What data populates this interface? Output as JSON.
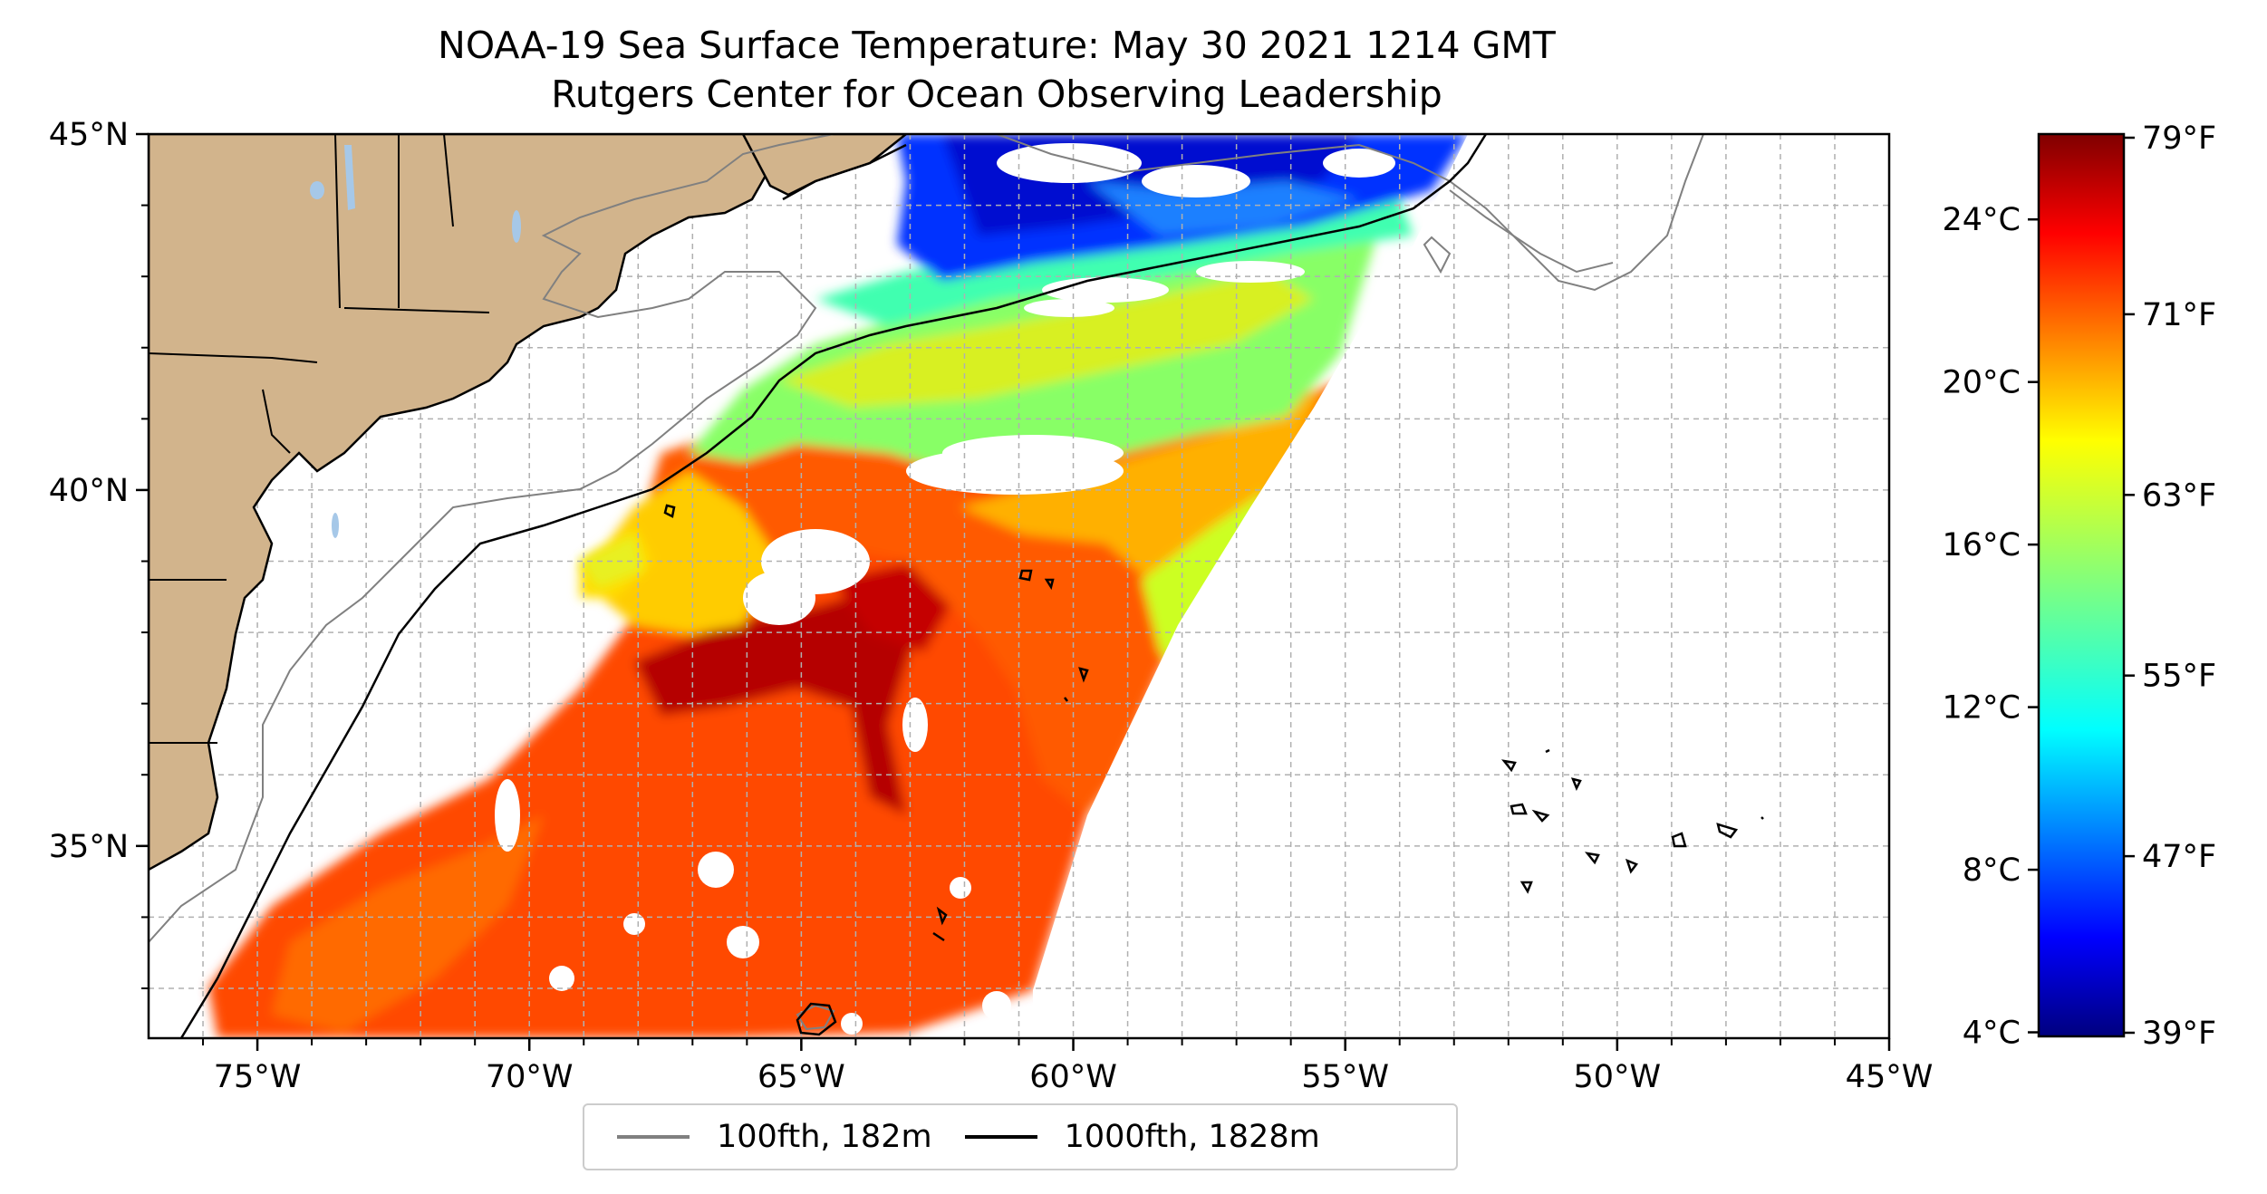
{
  "title": "NOAA-19 Sea Surface Temperature: May 30 2021 1214 GMT",
  "subtitle": "Rutgers Center for Ocean Observing Leadership",
  "map": {
    "lon_range": [
      -77,
      -45
    ],
    "lat_range": [
      32.3,
      45
    ],
    "lon_ticks": [
      {
        "value": -75,
        "label": "75°W"
      },
      {
        "value": -70,
        "label": "70°W"
      },
      {
        "value": -65,
        "label": "65°W"
      },
      {
        "value": -60,
        "label": "60°W"
      },
      {
        "value": -55,
        "label": "55°W"
      },
      {
        "value": -50,
        "label": "50°W"
      },
      {
        "value": -45,
        "label": "45°W"
      }
    ],
    "lat_ticks": [
      {
        "value": 45,
        "label": "45°N"
      },
      {
        "value": 40,
        "label": "40°N"
      },
      {
        "value": 35,
        "label": "35°N"
      }
    ],
    "gridlines": true,
    "land_color": "#d2b48c",
    "lake_color": "#a6c8e8"
  },
  "colorbar": {
    "colormap": "jet",
    "range_c": [
      3.9,
      26.1
    ],
    "celsius_ticks": [
      {
        "value": 4,
        "label": "4°C"
      },
      {
        "value": 8,
        "label": "8°C"
      },
      {
        "value": 12,
        "label": "12°C"
      },
      {
        "value": 16,
        "label": "16°C"
      },
      {
        "value": 20,
        "label": "20°C"
      },
      {
        "value": 24,
        "label": "24°C"
      }
    ],
    "fahrenheit_ticks": [
      {
        "value": 39,
        "label": "39°F"
      },
      {
        "value": 47,
        "label": "47°F"
      },
      {
        "value": 55,
        "label": "55°F"
      },
      {
        "value": 63,
        "label": "63°F"
      },
      {
        "value": 71,
        "label": "71°F"
      },
      {
        "value": 79,
        "label": "79°F"
      }
    ]
  },
  "legend": {
    "items": [
      {
        "label": "100fth, 182m",
        "color": "#808080"
      },
      {
        "label": "1000fth, 1828m",
        "color": "#000000"
      }
    ],
    "placement": "bottom-center"
  }
}
